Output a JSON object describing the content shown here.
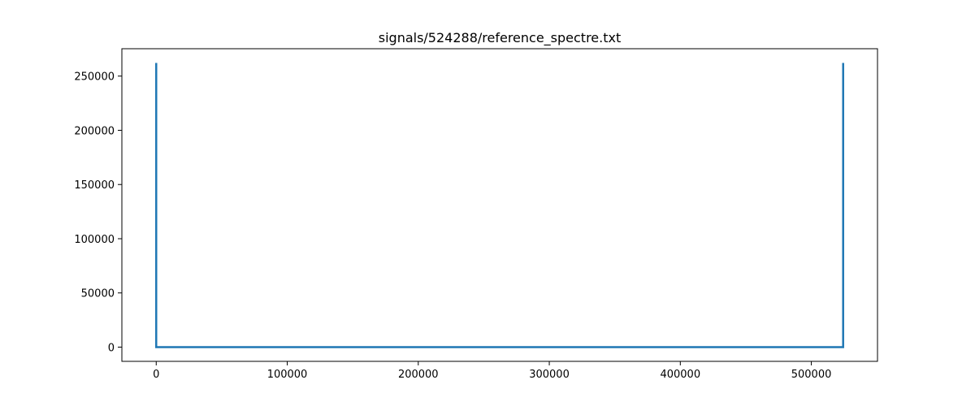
{
  "chart_data": {
    "type": "line",
    "title": "signals/524288/reference_spectre.txt",
    "xlabel": "",
    "ylabel": "",
    "xlim": [
      -26214,
      550502
    ],
    "ylim": [
      -13107,
      275251
    ],
    "grid": false,
    "x_ticks": [
      0,
      100000,
      200000,
      300000,
      400000,
      500000
    ],
    "x_tick_labels": [
      "0",
      "100000",
      "200000",
      "300000",
      "400000",
      "500000"
    ],
    "y_ticks": [
      0,
      50000,
      100000,
      150000,
      200000,
      250000
    ],
    "y_tick_labels": [
      "0",
      "50000",
      "100000",
      "150000",
      "200000",
      "250000"
    ],
    "series": [
      {
        "color": "#1f77b4",
        "x": [
          0,
          1,
          2,
          524285,
          524286,
          524287
        ],
        "y": [
          262144,
          0,
          0,
          0,
          0,
          262144
        ]
      }
    ]
  }
}
